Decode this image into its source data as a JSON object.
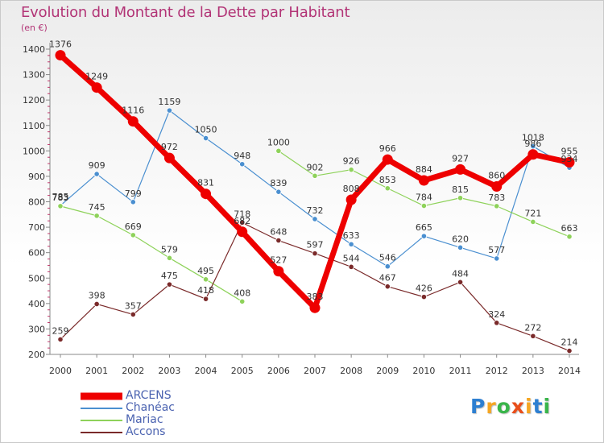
{
  "title": "Evolution du Montant de la Dette par Habitant",
  "subtitle": "(en €)",
  "brand": {
    "text": "Proxiti",
    "letters": [
      {
        "ch": "P",
        "color": "#2d7fd1"
      },
      {
        "ch": "r",
        "color": "#f5a623"
      },
      {
        "ch": "o",
        "color": "#39b54a"
      },
      {
        "ch": "x",
        "color": "#e94e1b"
      },
      {
        "ch": "i",
        "color": "#f5a623"
      },
      {
        "ch": "t",
        "color": "#2d7fd1"
      },
      {
        "ch": "i",
        "color": "#39b54a"
      }
    ]
  },
  "chart_data": {
    "type": "line",
    "title": "Evolution du Montant de la Dette par Habitant",
    "ylabel": "(en €)",
    "xlabel": "",
    "x": [
      2000,
      2001,
      2002,
      2003,
      2004,
      2005,
      2006,
      2007,
      2008,
      2009,
      2010,
      2011,
      2012,
      2013,
      2014
    ],
    "ylim": [
      200,
      1400
    ],
    "yticks": [
      200,
      300,
      400,
      500,
      600,
      700,
      800,
      900,
      1000,
      1100,
      1200,
      1300,
      1400
    ],
    "grid": false,
    "legend_position": "bottom-left",
    "series": [
      {
        "name": "ARCENS",
        "color": "#ee0000",
        "values": [
          1376,
          1249,
          1116,
          972,
          831,
          682,
          527,
          383,
          808,
          966,
          884,
          927,
          860,
          986,
          955
        ]
      },
      {
        "name": "Chanéac",
        "color": "#4a8fd0",
        "values": [
          785,
          909,
          799,
          1159,
          1050,
          948,
          839,
          732,
          633,
          546,
          665,
          620,
          577,
          1018,
          934
        ]
      },
      {
        "name": "Mariac",
        "color": "#8ed25a",
        "values": [
          783,
          745,
          669,
          579,
          495,
          408,
          1000,
          902,
          926,
          853,
          784,
          815,
          783,
          721,
          663
        ]
      },
      {
        "name": "Accons",
        "color": "#7a2a2a",
        "values": [
          259,
          398,
          357,
          475,
          418,
          718,
          648,
          597,
          544,
          467,
          426,
          484,
          324,
          272,
          214
        ]
      }
    ]
  }
}
